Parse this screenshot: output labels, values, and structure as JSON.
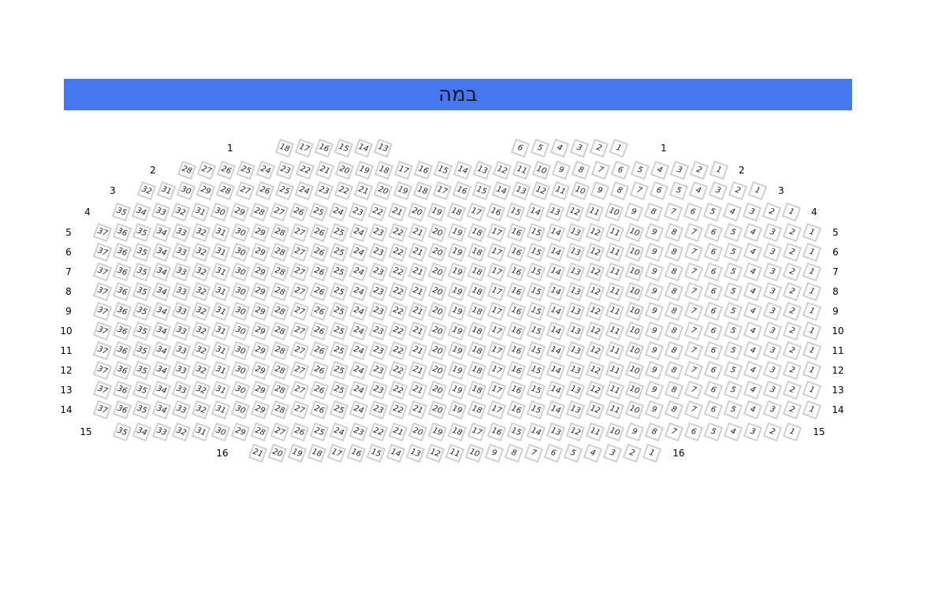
{
  "stage": {
    "label": "במה",
    "color": "#4677ef"
  },
  "rows": [
    {
      "label": "1",
      "sections": [
        [
          18,
          17,
          16,
          15,
          14,
          13
        ],
        [
          6,
          5,
          4,
          3,
          2,
          1
        ]
      ]
    },
    {
      "label": "2",
      "sections": [
        [
          28,
          27,
          26,
          25,
          24,
          23,
          22,
          21,
          20,
          19,
          18,
          17,
          16,
          15,
          14,
          13,
          12,
          11,
          10,
          9,
          8,
          7,
          6,
          5,
          4,
          3,
          2,
          1
        ]
      ]
    },
    {
      "label": "3",
      "sections": [
        [
          32,
          31,
          30,
          29,
          28,
          27,
          26,
          25,
          24,
          23,
          22,
          21,
          20,
          19,
          18,
          17,
          16,
          15,
          14,
          13,
          12,
          11,
          10,
          9,
          8,
          7,
          6,
          5,
          4,
          3,
          2,
          1
        ]
      ]
    },
    {
      "label": "4",
      "sections": [
        [
          35,
          34,
          33,
          32,
          31,
          30,
          29,
          28,
          27,
          26,
          25,
          24,
          23,
          22,
          21,
          20,
          19,
          18,
          17,
          16,
          15,
          14,
          13,
          12,
          11,
          10,
          9,
          8,
          7,
          6,
          5,
          4,
          3,
          2,
          1
        ]
      ]
    },
    {
      "label": "5",
      "sections": [
        [
          37,
          36,
          35,
          34,
          33,
          32,
          31,
          30,
          29,
          28,
          27,
          26,
          25,
          24,
          23,
          22,
          21,
          20,
          19,
          18,
          17,
          16,
          15,
          14,
          13,
          12,
          11,
          10,
          9,
          8,
          7,
          6,
          5,
          4,
          3,
          2,
          1
        ]
      ]
    },
    {
      "label": "6",
      "sections": [
        [
          37,
          36,
          35,
          34,
          33,
          32,
          31,
          30,
          29,
          28,
          27,
          26,
          25,
          24,
          23,
          22,
          21,
          20,
          19,
          18,
          17,
          16,
          15,
          14,
          13,
          12,
          11,
          10,
          9,
          8,
          7,
          6,
          5,
          4,
          3,
          2,
          1
        ]
      ]
    },
    {
      "label": "7",
      "sections": [
        [
          37,
          36,
          35,
          34,
          33,
          32,
          31,
          30,
          29,
          28,
          27,
          26,
          25,
          24,
          23,
          22,
          21,
          20,
          19,
          18,
          17,
          16,
          15,
          14,
          13,
          12,
          11,
          10,
          9,
          8,
          7,
          6,
          5,
          4,
          3,
          2,
          1
        ]
      ]
    },
    {
      "label": "8",
      "sections": [
        [
          37,
          36,
          35,
          34,
          33,
          32,
          31,
          30,
          29,
          28,
          27,
          26,
          25,
          24,
          23,
          22,
          21,
          20,
          19,
          18,
          17,
          16,
          15,
          14,
          13,
          12,
          11,
          10,
          9,
          8,
          7,
          6,
          5,
          4,
          3,
          2,
          1
        ]
      ]
    },
    {
      "label": "9",
      "sections": [
        [
          37,
          36,
          35,
          34,
          33,
          32,
          31,
          30,
          29,
          28,
          27,
          26,
          25,
          24,
          23,
          22,
          21,
          20,
          19,
          18,
          17,
          16,
          15,
          14,
          13,
          12,
          11,
          10,
          9,
          8,
          7,
          6,
          5,
          4,
          3,
          2,
          1
        ]
      ]
    },
    {
      "label": "10",
      "sections": [
        [
          37,
          36,
          35,
          34,
          33,
          32,
          31,
          30,
          29,
          28,
          27,
          26,
          25,
          24,
          23,
          22,
          21,
          20,
          19,
          18,
          17,
          16,
          15,
          14,
          13,
          12,
          11,
          10,
          9,
          8,
          7,
          6,
          5,
          4,
          3,
          2,
          1
        ]
      ]
    },
    {
      "label": "11",
      "sections": [
        [
          37,
          36,
          35,
          34,
          33,
          32,
          31,
          30,
          29,
          28,
          27,
          26,
          25,
          24,
          23,
          22,
          21,
          20,
          19,
          18,
          17,
          16,
          15,
          14,
          13,
          12,
          11,
          10,
          9,
          8,
          7,
          6,
          5,
          4,
          3,
          2,
          1
        ]
      ]
    },
    {
      "label": "12",
      "sections": [
        [
          37,
          36,
          35,
          34,
          33,
          32,
          31,
          30,
          29,
          28,
          27,
          26,
          25,
          24,
          23,
          22,
          21,
          20,
          19,
          18,
          17,
          16,
          15,
          14,
          13,
          12,
          11,
          10,
          9,
          8,
          7,
          6,
          5,
          4,
          3,
          2,
          1
        ]
      ]
    },
    {
      "label": "13",
      "sections": [
        [
          37,
          36,
          35,
          34,
          33,
          32,
          31,
          30,
          29,
          28,
          27,
          26,
          25,
          24,
          23,
          22,
          21,
          20,
          19,
          18,
          17,
          16,
          15,
          14,
          13,
          12,
          11,
          10,
          9,
          8,
          7,
          6,
          5,
          4,
          3,
          2,
          1
        ]
      ]
    },
    {
      "label": "14",
      "sections": [
        [
          37,
          36,
          35,
          34,
          33,
          32,
          31,
          30,
          29,
          28,
          27,
          26,
          25,
          24,
          23,
          22,
          21,
          20,
          19,
          18,
          17,
          16,
          15,
          14,
          13,
          12,
          11,
          10,
          9,
          8,
          7,
          6,
          5,
          4,
          3,
          2,
          1
        ]
      ]
    },
    {
      "label": "15",
      "sections": [
        [
          35,
          34,
          33,
          32,
          31,
          30,
          29,
          28,
          27,
          26,
          25,
          24,
          23,
          22,
          21,
          20,
          19,
          18,
          17,
          16,
          15,
          14,
          13,
          12,
          11,
          10,
          9,
          8,
          7,
          6,
          5,
          4,
          3,
          2,
          1
        ]
      ]
    },
    {
      "label": "16",
      "sections": [
        [
          21,
          20,
          19,
          18,
          17,
          16,
          15,
          14,
          13,
          12,
          11,
          10,
          9,
          8,
          7,
          6,
          5,
          4,
          3,
          2,
          1
        ]
      ]
    }
  ]
}
